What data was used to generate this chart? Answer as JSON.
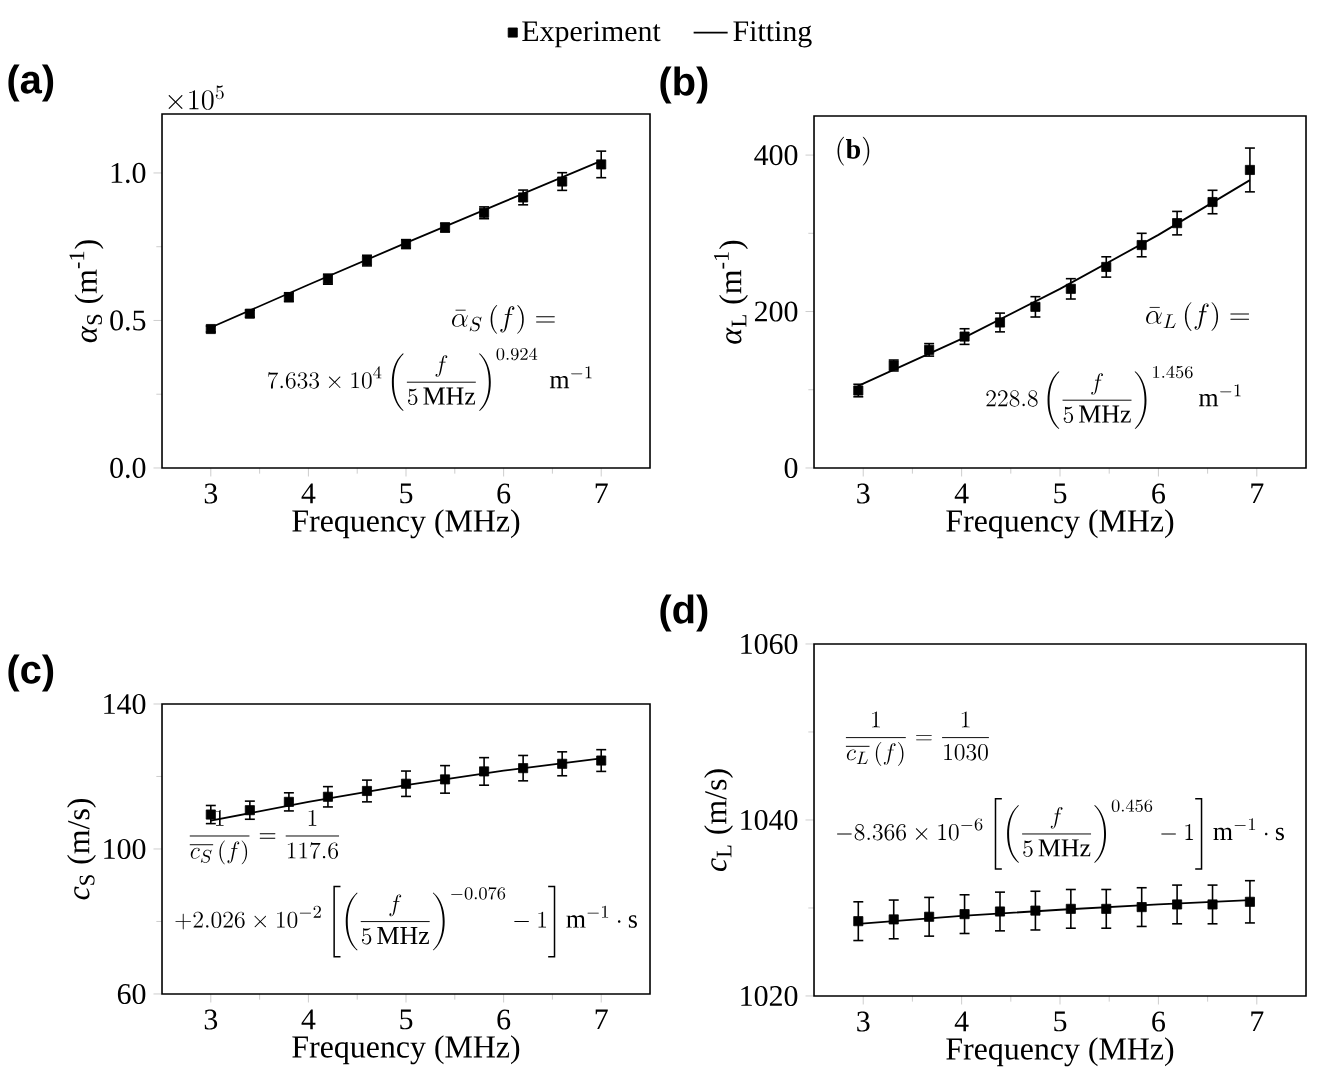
{
  "chart_data": [
    {
      "type": "scatter",
      "title": "(a)",
      "xlabel": "Frequency (MHz)",
      "ylabel": "*α*$_{S}$ (m$^{-1}$)",
      "xlim": [
        2.5,
        7.5
      ],
      "xticks": [
        3,
        4,
        5,
        6,
        7
      ],
      "ylim": [
        0,
        1.2
      ],
      "yticks": [
        {
          "value": 0,
          "label": "0.0"
        },
        0.5,
        {
          "value": 1,
          "label": "1.0"
        }
      ],
      "legend": "top",
      "annotations": [
        "\\times10^{5}",
        "\\bar{\\alpha}_S\\left(f\\right)=",
        "7.633\\times10^{4}\\left(\\frac{f}{5\\,\\mathrm{MHz}}\\right)^{0.924}\\;\\mathrm{m}^{-1}"
      ],
      "series": [
        {
          "name": "Experiment",
          "marker": "square",
          "color": "#000000",
          "x": [
            3,
            3.4,
            3.8,
            4.2,
            4.6,
            5,
            5.4,
            5.8,
            6.2,
            6.6,
            7
          ],
          "values": [
            0.471,
            0.523,
            0.579,
            0.64,
            0.703,
            0.759,
            0.815,
            0.865,
            0.917,
            0.971,
            1.029
          ],
          "errors": [
            0.01,
            0.012,
            0.015,
            0.017,
            0.018,
            0.015,
            0.015,
            0.02,
            0.025,
            0.03,
            0.045
          ]
        },
        {
          "name": "Fitting",
          "type": "line",
          "marker": "none",
          "line_style": "solid",
          "color": "#000000",
          "x": [
            3,
            4,
            5,
            6,
            7
          ],
          "values": [
            0.476,
            0.621,
            0.763,
            0.902,
            1.041
          ]
        }
      ]
    },
    {
      "type": "scatter",
      "title": "(b)",
      "xlabel": "Frequency (MHz)",
      "ylabel": "*α*$_{L}$ (m$^{-1}$)",
      "xlim": [
        2.5,
        7.5
      ],
      "xticks": [
        3,
        4,
        5,
        6,
        7
      ],
      "ylim": [
        0,
        450
      ],
      "yticks": [
        0,
        200,
        400
      ],
      "annotations": [
        "\\mathbf{(b)}",
        "\\bar{\\alpha}_L\\left(f\\right)=",
        "228.8\\left(\\frac{f}{5\\,\\mathrm{MHz}}\\right)^{1.456}\\mathrm{m}^{-1}"
      ],
      "series": [
        {
          "marker": "square",
          "color": "#000000",
          "x": [
            2.95,
            3.31,
            3.67,
            4.03,
            4.39,
            4.75,
            5.11,
            5.47,
            5.83,
            6.19,
            6.55,
            6.93
          ],
          "values": [
            99,
            131,
            151,
            168,
            186,
            206,
            229,
            257,
            285,
            313,
            340,
            381
          ],
          "errors": [
            8,
            7,
            8,
            10,
            12,
            13,
            13,
            13,
            15,
            15,
            15,
            28
          ]
        },
        {
          "type": "line",
          "marker": "none",
          "line_style": "solid",
          "color": "#000000",
          "x": [
            2.95,
            4,
            5,
            6,
            6.93
          ],
          "values": [
            105,
            165,
            229,
            298,
            368
          ]
        }
      ]
    },
    {
      "type": "scatter",
      "title": "(c)",
      "xlabel": "Frequency (MHz)",
      "ylabel": "*c*$_{S}$ (m/s)",
      "xlim": [
        2.5,
        7.5
      ],
      "xticks": [
        3,
        4,
        5,
        6,
        7
      ],
      "ylim": [
        60,
        140
      ],
      "yticks": [
        60,
        100,
        140
      ],
      "annotations": [
        "\\frac{1}{\\overline{c_S}\\left(f\\right)}=\\frac{1}{117.6}",
        "+2.026\\times10^{-2}\\left[\\left(\\frac{f}{5\\,\\mathrm{MHz}}\\right)^{-0.076}-1\\right]\\mathrm{m}^{-1}\\cdot\\mathrm{s}"
      ],
      "series": [
        {
          "marker": "square",
          "color": "#000000",
          "x": [
            3,
            3.4,
            3.8,
            4.2,
            4.6,
            5,
            5.4,
            5.8,
            6.2,
            6.6,
            7
          ],
          "values": [
            109.5,
            110.7,
            113,
            114.4,
            116,
            118,
            119.2,
            121.4,
            122.3,
            123.5,
            124.4
          ],
          "errors": [
            2.5,
            2.5,
            2.5,
            2.8,
            3,
            3.5,
            3.8,
            3.8,
            3.5,
            3.3,
            3
          ]
        },
        {
          "type": "line",
          "marker": "none",
          "line_style": "solid",
          "color": "#000000",
          "x": [
            3,
            4,
            5,
            6,
            7
          ],
          "values": [
            107.8,
            113,
            117.6,
            121.6,
            125
          ]
        }
      ]
    },
    {
      "type": "scatter",
      "title": "(d)",
      "xlabel": "Frequency (MHz)",
      "ylabel": "*c*$_{L}$ (m/s)",
      "xlim": [
        2.5,
        7.5
      ],
      "xticks": [
        3,
        4,
        5,
        6,
        7
      ],
      "ylim": [
        1020,
        1060
      ],
      "yticks": [
        1020,
        1040,
        1060
      ],
      "annotations": [
        "\\frac{1}{\\overline{c_L}\\left(f\\right)}=\\frac{1}{1030}",
        "-8.366\\times10^{-6}\\left[\\left(\\frac{f}{5\\,\\mathrm{MHz}}\\right)^{0.456}-1\\right]\\mathrm{m}^{-1}\\cdot\\mathrm{s}"
      ],
      "series": [
        {
          "marker": "square",
          "color": "#000000",
          "x": [
            2.95,
            3.31,
            3.67,
            4.03,
            4.39,
            4.75,
            5.11,
            5.47,
            5.83,
            6.19,
            6.55,
            6.93
          ],
          "values": [
            1028.5,
            1028.7,
            1029,
            1029.3,
            1029.6,
            1029.7,
            1029.9,
            1029.9,
            1030.1,
            1030.4,
            1030.4,
            1030.7
          ],
          "errors": [
            2.2,
            2.2,
            2.2,
            2.2,
            2.2,
            2.2,
            2.2,
            2.2,
            2.2,
            2.2,
            2.2,
            2.4
          ]
        },
        {
          "type": "line",
          "marker": "none",
          "line_style": "solid",
          "color": "#000000",
          "x": [
            2.95,
            4,
            5,
            6,
            6.93
          ],
          "values": [
            1028.2,
            1029.1,
            1029.8,
            1030.4,
            1030.9
          ]
        }
      ]
    }
  ]
}
